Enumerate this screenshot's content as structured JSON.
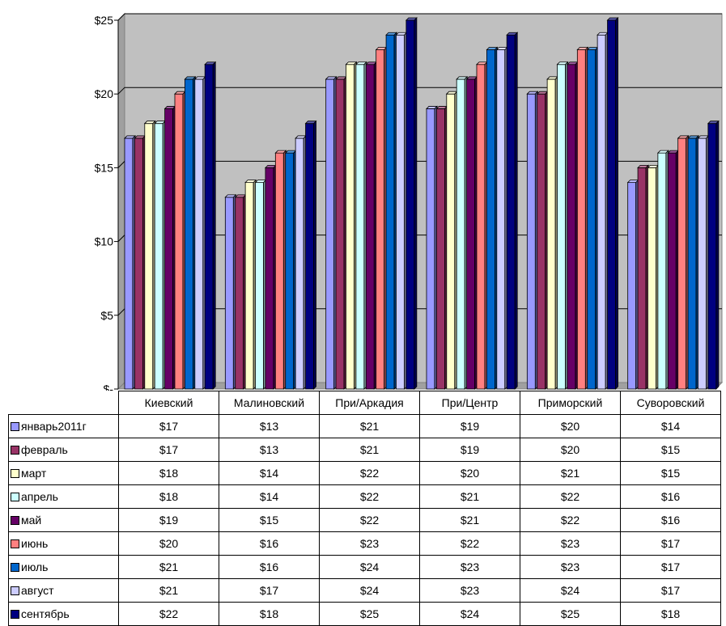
{
  "chart_data": {
    "type": "bar",
    "categories": [
      "Киевский",
      "Малиновский",
      "При/Аркадия",
      "При/Центр",
      "Приморский",
      "Суворовский"
    ],
    "series": [
      {
        "name": "январь2011г",
        "color": "#9999FF",
        "values": [
          17,
          13,
          21,
          19,
          20,
          14
        ]
      },
      {
        "name": "февраль",
        "color": "#993366",
        "values": [
          17,
          13,
          21,
          19,
          20,
          15
        ]
      },
      {
        "name": "март",
        "color": "#FFFFCC",
        "values": [
          18,
          14,
          22,
          20,
          21,
          15
        ]
      },
      {
        "name": "апрель",
        "color": "#CCFFFF",
        "values": [
          18,
          14,
          22,
          21,
          22,
          16
        ]
      },
      {
        "name": "май",
        "color": "#660066",
        "values": [
          19,
          15,
          22,
          21,
          22,
          16
        ]
      },
      {
        "name": "июнь",
        "color": "#FF8080",
        "values": [
          20,
          16,
          23,
          22,
          23,
          17
        ]
      },
      {
        "name": "июль",
        "color": "#0066CC",
        "values": [
          21,
          16,
          24,
          23,
          23,
          17
        ]
      },
      {
        "name": "август",
        "color": "#CCCCFF",
        "values": [
          21,
          17,
          24,
          23,
          24,
          17
        ]
      },
      {
        "name": "сентябрь",
        "color": "#000080",
        "values": [
          22,
          18,
          25,
          24,
          25,
          18
        ]
      }
    ],
    "table_values": [
      [
        "$17",
        "$13",
        "$21",
        "$19",
        "$20",
        "$14"
      ],
      [
        "$17",
        "$13",
        "$21",
        "$19",
        "$20",
        "$15"
      ],
      [
        "$18",
        "$14",
        "$22",
        "$20",
        "$21",
        "$15"
      ],
      [
        "$18",
        "$14",
        "$22",
        "$21",
        "$22",
        "$16"
      ],
      [
        "$19",
        "$15",
        "$22",
        "$21",
        "$22",
        "$16"
      ],
      [
        "$20",
        "$16",
        "$23",
        "$22",
        "$23",
        "$17"
      ],
      [
        "$21",
        "$16",
        "$24",
        "$23",
        "$23",
        "$17"
      ],
      [
        "$21",
        "$17",
        "$24",
        "$23",
        "$24",
        "$17"
      ],
      [
        "$22",
        "$18",
        "$25",
        "$24",
        "$25",
        "$18"
      ]
    ],
    "y_ticks": [
      {
        "value": 0,
        "label": "$-"
      },
      {
        "value": 5,
        "label": "$5"
      },
      {
        "value": 10,
        "label": "$10"
      },
      {
        "value": 15,
        "label": "$15"
      },
      {
        "value": 20,
        "label": "$20"
      },
      {
        "value": 25,
        "label": "$25"
      }
    ],
    "ylim": [
      0,
      25
    ],
    "grid": true,
    "legend": "data table below chart",
    "colors": {
      "wall": "#C0C0C0",
      "gridline": "#000000"
    }
  }
}
